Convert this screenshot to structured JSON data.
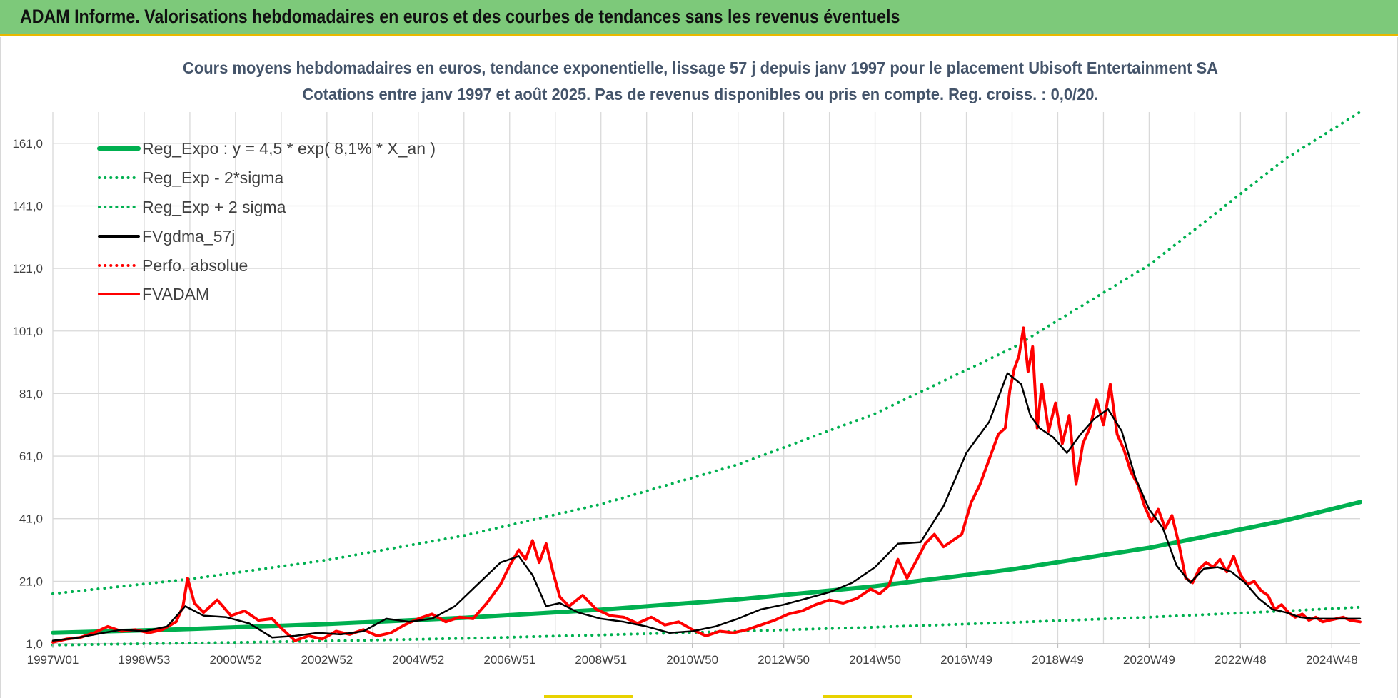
{
  "banner": {
    "title": "ADAM Informe. Valorisations hebdomadaires en euros et des courbes de tendances sans les revenus éventuels"
  },
  "colors": {
    "banner": "#7dc97a",
    "green": "#00b050",
    "red": "#ff0000",
    "black": "#000000",
    "grid": "#d9d9d9",
    "title": "#44546a"
  },
  "chart_data": {
    "type": "line",
    "title": "Cours moyens hebdomadaires en euros, tendance exponentielle, lissage 57 j depuis janv 1997  pour le placement Ubisoft Entertainment SA",
    "subtitle": "Cotations entre janv 1997 et août 2025.  Pas de revenus disponibles ou pris en compte. Reg. croiss. : 0,0/20.",
    "xlabel": "",
    "ylabel": "",
    "ylim": [
      1.0,
      171.0
    ],
    "xlim": [
      1997.0,
      2025.62
    ],
    "y_ticks": [
      "1,0",
      "21,0",
      "41,0",
      "61,0",
      "81,0",
      "101,0",
      "121,0",
      "141,0",
      "161,0"
    ],
    "y_tick_values": [
      1,
      21,
      41,
      61,
      81,
      101,
      121,
      141,
      161
    ],
    "x_ticks": [
      "1997W01",
      "1998W53",
      "2000W52",
      "2002W52",
      "2004W52",
      "2006W51",
      "2008W51",
      "2010W50",
      "2012W50",
      "2014W50",
      "2016W49",
      "2018W49",
      "2020W49",
      "2022W48",
      "2024W48"
    ],
    "x_tick_values": [
      1997.0,
      1999.0,
      2001.0,
      2003.0,
      2005.0,
      2007.0,
      2009.0,
      2011.0,
      2013.0,
      2015.0,
      2017.0,
      2019.0,
      2021.0,
      2023.0,
      2025.0
    ],
    "grid": true,
    "legend_position": "top-left",
    "series": [
      {
        "name": "Reg_Expo : y = 4,5 * exp( 8,1% *  X_an )",
        "color": "#00b050",
        "style": "solid",
        "x": [
          1997.0,
          2000.0,
          2003.0,
          2006.0,
          2009.0,
          2012.0,
          2015.0,
          2018.0,
          2021.0,
          2024.0,
          2025.62
        ],
        "y": [
          4.5,
          5.7,
          7.3,
          9.3,
          11.9,
          15.2,
          19.4,
          24.8,
          31.7,
          40.5,
          46.3
        ]
      },
      {
        "name": "Reg_Exp - 2*sigma",
        "color": "#00b050",
        "style": "dotted",
        "x": [
          1997.0,
          2000.0,
          2003.0,
          2006.0,
          2009.0,
          2012.0,
          2015.0,
          2018.0,
          2021.0,
          2024.0,
          2025.62
        ],
        "y": [
          0.6,
          1.2,
          1.9,
          2.7,
          3.8,
          5.0,
          6.3,
          7.8,
          9.5,
          11.5,
          12.7
        ]
      },
      {
        "name": "Reg_Exp + 2 sigma",
        "color": "#00b050",
        "style": "dotted",
        "x": [
          1997.0,
          2000.0,
          2003.0,
          2006.0,
          2009.0,
          2012.0,
          2015.0,
          2018.0,
          2021.0,
          2024.0,
          2025.62
        ],
        "y": [
          17.0,
          21.7,
          27.8,
          35.6,
          45.6,
          58.3,
          74.6,
          95.5,
          122.1,
          156.2,
          171.0
        ]
      },
      {
        "name": "FVgdma_57j",
        "color": "#000000",
        "style": "solid",
        "x": [
          1997.0,
          1997.5,
          1998.0,
          1998.5,
          1999.0,
          1999.5,
          1999.9,
          2000.3,
          2000.8,
          2001.3,
          2001.8,
          2002.3,
          2002.8,
          2003.3,
          2003.8,
          2004.3,
          2004.8,
          2005.3,
          2005.8,
          2006.3,
          2006.8,
          2007.2,
          2007.5,
          2007.8,
          2008.1,
          2008.5,
          2009.0,
          2009.5,
          2010.0,
          2010.5,
          2011.0,
          2011.5,
          2012.0,
          2012.5,
          2013.0,
          2013.5,
          2014.0,
          2014.5,
          2015.0,
          2015.5,
          2016.0,
          2016.5,
          2017.0,
          2017.5,
          2017.9,
          2018.2,
          2018.4,
          2018.6,
          2018.9,
          2019.2,
          2019.5,
          2019.8,
          2020.1,
          2020.4,
          2020.7,
          2021.0,
          2021.3,
          2021.6,
          2021.9,
          2022.2,
          2022.5,
          2022.8,
          2023.1,
          2023.4,
          2023.7,
          2024.0,
          2024.3,
          2024.6,
          2024.9,
          2025.2,
          2025.62
        ],
        "y": [
          2.0,
          2.8,
          4.2,
          5.5,
          5.0,
          6.5,
          13.0,
          10.0,
          9.5,
          7.5,
          3.0,
          3.5,
          4.5,
          4.0,
          5.0,
          9.0,
          8.0,
          9.0,
          13.0,
          20.0,
          27.0,
          29.0,
          23.0,
          13.0,
          14.0,
          11.0,
          9.0,
          8.0,
          6.5,
          4.5,
          5.0,
          6.5,
          9.0,
          12.0,
          13.5,
          15.5,
          17.5,
          20.5,
          25.5,
          33.0,
          33.5,
          45.0,
          62.0,
          72.0,
          87.5,
          84.0,
          74.0,
          70.0,
          67.0,
          62.0,
          68.0,
          73.0,
          76.0,
          69.0,
          54.0,
          44.0,
          38.0,
          26.0,
          20.5,
          25.0,
          25.5,
          24.0,
          20.5,
          15.5,
          12.0,
          11.0,
          9.5,
          9.0,
          9.0,
          9.0,
          9.0
        ]
      },
      {
        "name": "Perfo. absolue",
        "color": "#ff0000",
        "style": "dotted",
        "x": [],
        "y": []
      },
      {
        "name": "FVADAM",
        "color": "#ff0000",
        "style": "solid",
        "x": [
          1997.0,
          1997.3,
          1997.6,
          1997.9,
          1998.2,
          1998.5,
          1998.8,
          1999.1,
          1999.4,
          1999.7,
          1999.85,
          1999.95,
          2000.1,
          2000.3,
          2000.6,
          2000.9,
          2001.2,
          2001.5,
          2001.8,
          2002.0,
          2002.3,
          2002.6,
          2002.9,
          2003.2,
          2003.5,
          2003.8,
          2004.1,
          2004.4,
          2004.7,
          2005.0,
          2005.3,
          2005.6,
          2005.9,
          2006.2,
          2006.5,
          2006.8,
          2007.0,
          2007.2,
          2007.35,
          2007.5,
          2007.65,
          2007.8,
          2007.95,
          2008.1,
          2008.3,
          2008.6,
          2008.9,
          2009.2,
          2009.5,
          2009.8,
          2010.1,
          2010.4,
          2010.7,
          2011.0,
          2011.3,
          2011.6,
          2011.9,
          2012.2,
          2012.5,
          2012.8,
          2013.1,
          2013.4,
          2013.7,
          2014.0,
          2014.3,
          2014.6,
          2014.9,
          2015.1,
          2015.3,
          2015.5,
          2015.7,
          2015.9,
          2016.1,
          2016.3,
          2016.5,
          2016.7,
          2016.9,
          2017.1,
          2017.3,
          2017.5,
          2017.7,
          2017.85,
          2017.95,
          2018.05,
          2018.15,
          2018.25,
          2018.35,
          2018.45,
          2018.55,
          2018.65,
          2018.8,
          2018.95,
          2019.1,
          2019.25,
          2019.4,
          2019.55,
          2019.7,
          2019.85,
          2020.0,
          2020.15,
          2020.3,
          2020.45,
          2020.6,
          2020.75,
          2020.9,
          2021.05,
          2021.2,
          2021.35,
          2021.5,
          2021.65,
          2021.8,
          2021.95,
          2022.1,
          2022.25,
          2022.4,
          2022.55,
          2022.7,
          2022.85,
          2023.0,
          2023.15,
          2023.3,
          2023.45,
          2023.6,
          2023.75,
          2023.9,
          2024.05,
          2024.2,
          2024.35,
          2024.5,
          2024.65,
          2024.8,
          2024.95,
          2025.1,
          2025.25,
          2025.4,
          2025.62
        ],
        "y": [
          1.5,
          2.5,
          3.0,
          4.5,
          6.5,
          5.0,
          5.5,
          4.5,
          5.5,
          8.0,
          13.0,
          22.0,
          14.0,
          11.0,
          15.0,
          10.0,
          11.5,
          8.5,
          9.0,
          6.0,
          2.0,
          3.5,
          2.5,
          5.0,
          4.0,
          5.5,
          3.5,
          4.5,
          7.0,
          9.0,
          10.5,
          8.0,
          9.5,
          9.0,
          14.0,
          20.0,
          26.0,
          31.0,
          28.0,
          34.0,
          27.0,
          33.0,
          24.0,
          16.0,
          13.0,
          16.5,
          12.0,
          10.0,
          9.5,
          7.5,
          9.5,
          7.0,
          8.0,
          5.5,
          3.5,
          5.0,
          4.5,
          5.5,
          7.0,
          8.5,
          10.5,
          11.5,
          13.5,
          15.0,
          14.0,
          15.5,
          18.5,
          17.0,
          19.5,
          28.0,
          22.0,
          27.5,
          33.0,
          36.0,
          32.0,
          34.0,
          36.0,
          46.0,
          52.0,
          60.0,
          68.0,
          70.0,
          82.0,
          89.0,
          93.0,
          102.0,
          88.0,
          96.0,
          70.0,
          84.0,
          69.0,
          78.0,
          65.0,
          74.0,
          52.0,
          65.0,
          70.0,
          79.0,
          71.0,
          84.0,
          68.0,
          63.0,
          56.0,
          52.0,
          45.0,
          40.0,
          44.0,
          38.0,
          42.0,
          33.0,
          22.0,
          20.5,
          25.0,
          27.0,
          25.5,
          28.0,
          24.0,
          29.0,
          23.0,
          20.0,
          21.0,
          18.0,
          16.5,
          12.0,
          13.5,
          11.0,
          9.5,
          10.5,
          8.5,
          9.5,
          8.0,
          8.5,
          9.0,
          9.5,
          8.5,
          8.0
        ]
      }
    ]
  }
}
